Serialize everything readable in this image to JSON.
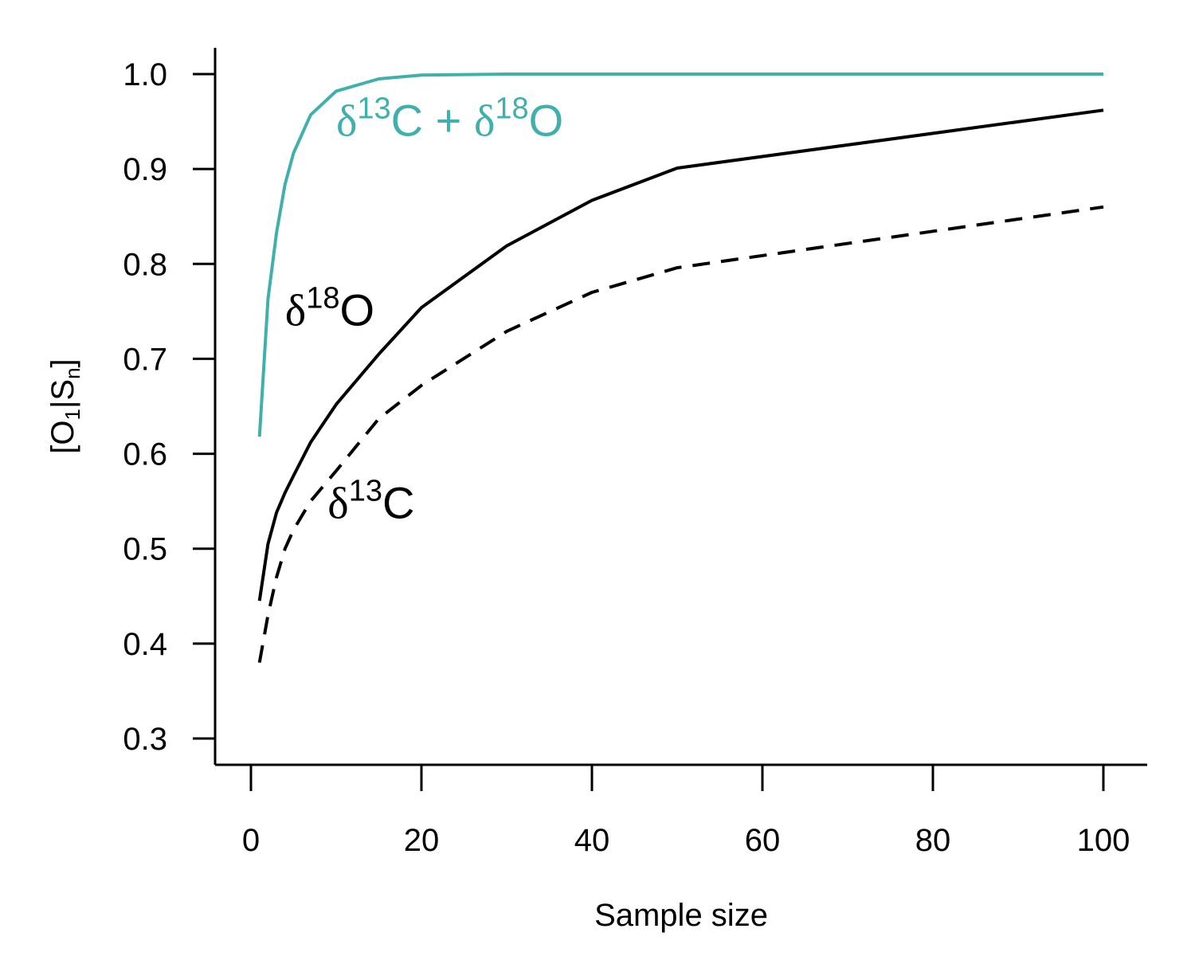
{
  "chart_data": {
    "type": "line",
    "xlabel": "Sample size",
    "ylabel": {
      "main": "[O",
      "sub1": "1",
      "mid": "|S",
      "sub2": "n",
      "end": "]"
    },
    "xlim": [
      0,
      100
    ],
    "ylim": [
      0.3,
      1.0
    ],
    "xticks": [
      0,
      20,
      40,
      60,
      80,
      100
    ],
    "yticks": [
      "0.3",
      "0.4",
      "0.5",
      "0.6",
      "0.7",
      "0.8",
      "0.9",
      "1.0"
    ],
    "grid": false,
    "legend": "none (direct labels)",
    "series": [
      {
        "key": "combined",
        "color": "#3fb0ac",
        "dash": "solid",
        "x": [
          1,
          2,
          3,
          4,
          5,
          7,
          10,
          15,
          20,
          30,
          50,
          100
        ],
        "y": [
          0.618,
          0.763,
          0.833,
          0.884,
          0.917,
          0.957,
          0.982,
          0.995,
          0.999,
          1.0,
          1.0,
          1.0
        ]
      },
      {
        "key": "d18O",
        "color": "#000000",
        "dash": "solid",
        "x": [
          1,
          2,
          3,
          4,
          5,
          7,
          10,
          15,
          20,
          30,
          40,
          50,
          100
        ],
        "y": [
          0.445,
          0.505,
          0.538,
          0.559,
          0.577,
          0.612,
          0.652,
          0.705,
          0.754,
          0.819,
          0.867,
          0.901,
          0.962
        ]
      },
      {
        "key": "d13C",
        "color": "#000000",
        "dash": "dashed",
        "x": [
          1,
          2,
          3,
          4,
          5,
          7,
          10,
          15,
          20,
          30,
          40,
          50,
          100
        ],
        "y": [
          0.38,
          0.43,
          0.47,
          0.5,
          0.52,
          0.55,
          0.582,
          0.637,
          0.672,
          0.729,
          0.77,
          0.796,
          0.86
        ]
      }
    ],
    "annotations": [
      {
        "key": "combined",
        "color": "#3fb0ac",
        "at_x": 10,
        "at_y": 0.935,
        "parts": [
          {
            "t": "δ",
            "greek": true
          },
          {
            "t": "13",
            "sup": true
          },
          {
            "t": "C + "
          },
          {
            "t": "δ",
            "greek": true
          },
          {
            "t": "18",
            "sup": true
          },
          {
            "t": "O"
          }
        ]
      },
      {
        "key": "d18O",
        "color": "#000000",
        "at_x": 4,
        "at_y": 0.735,
        "parts": [
          {
            "t": "δ",
            "greek": true
          },
          {
            "t": "18",
            "sup": true
          },
          {
            "t": "O"
          }
        ]
      },
      {
        "key": "d13C",
        "color": "#000000",
        "at_x": 9,
        "at_y": 0.532,
        "parts": [
          {
            "t": "δ",
            "greek": true
          },
          {
            "t": "13",
            "sup": true
          },
          {
            "t": "C"
          }
        ]
      }
    ]
  }
}
